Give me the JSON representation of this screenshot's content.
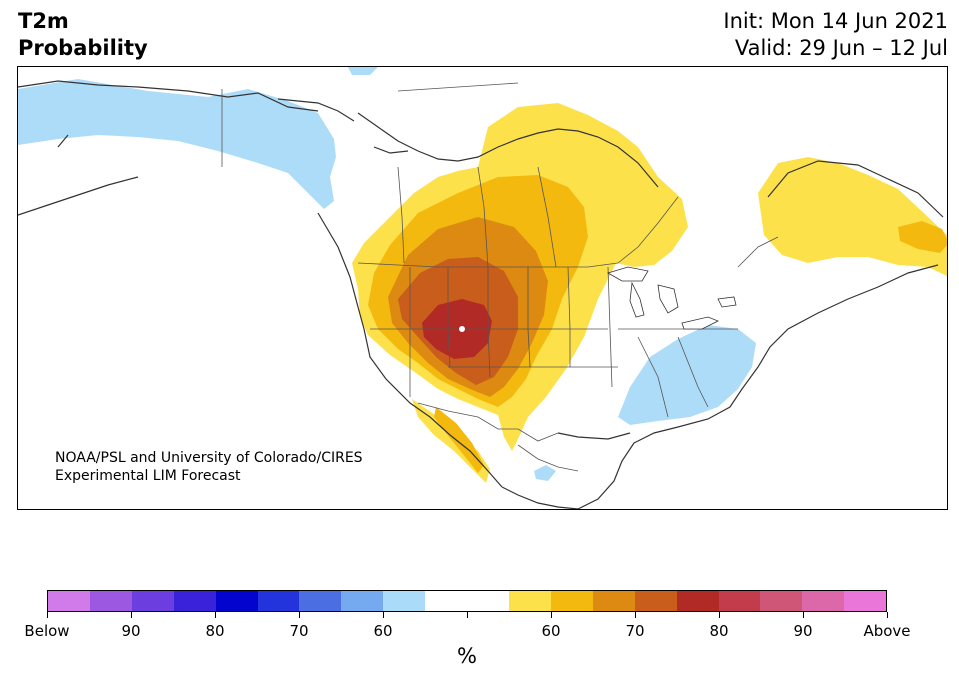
{
  "header": {
    "title_line1": "T2m",
    "title_line2": "Probability",
    "init": "Init: Mon 14 Jun 2021",
    "valid": "Valid: 29 Jun – 12 Jul"
  },
  "map": {
    "credit_line1": "NOAA/PSL and University of Colorado/CIRES",
    "credit_line2": "Experimental LIM Forecast",
    "colors": {
      "below_60": "#addcf9",
      "above_60": "#fde14a",
      "above_65": "#f4b90f",
      "above_70": "#dd8a12",
      "above_75": "#c95d1b",
      "above_80": "#b22a26",
      "boundaries": "#333333"
    }
  },
  "colorbar": {
    "unit_label": "%",
    "tick_labels": [
      "Below",
      "90",
      "80",
      "70",
      "60",
      "",
      "60",
      "70",
      "80",
      "90",
      "Above"
    ],
    "segment_colors": [
      "#d07be9",
      "#9c58e1",
      "#6c3ee0",
      "#3a22da",
      "#0404cf",
      "#2334dc",
      "#4b6fe3",
      "#76aaf0",
      "#aadcf9",
      "#ffffff",
      "#ffffff",
      "#fde14a",
      "#f4b90f",
      "#dd8a12",
      "#c95d1b",
      "#b22a26",
      "#c23c4c",
      "#cf5677",
      "#dd68a9",
      "#ea76d9"
    ]
  }
}
